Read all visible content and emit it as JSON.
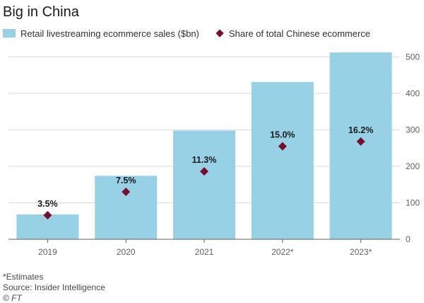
{
  "title": "Big in China",
  "legend": {
    "bars_label": "Retail livestreaming ecommerce sales ($bn)",
    "markers_label": "Share of total Chinese ecommerce"
  },
  "colors": {
    "bar": "#96d1e6",
    "marker": "#7b0d2a",
    "grid": "#d9d9d9",
    "axis": "#66605c",
    "label": "#1a1a1a"
  },
  "chart_data": {
    "type": "bar",
    "categories": [
      "2019",
      "2020",
      "2021",
      "2022*",
      "2023*"
    ],
    "series": [
      {
        "name": "Retail livestreaming ecommerce sales ($bn)",
        "type": "bar",
        "values": [
          68,
          174,
          298,
          431,
          512
        ]
      },
      {
        "name": "Share of total Chinese ecommerce",
        "type": "marker",
        "values": [
          66,
          130,
          186,
          255,
          268
        ],
        "labels": [
          "3.5%",
          "7.5%",
          "11.3%",
          "15.0%",
          "16.2%"
        ]
      }
    ],
    "y_axis": {
      "position": "right",
      "ticks": [
        0,
        100,
        200,
        300,
        400,
        500
      ],
      "ylim": [
        0,
        520
      ]
    },
    "grid": true
  },
  "footer": {
    "note": "*Estimates",
    "source": "Source: Insider Intelligence",
    "credit": "© FT"
  }
}
